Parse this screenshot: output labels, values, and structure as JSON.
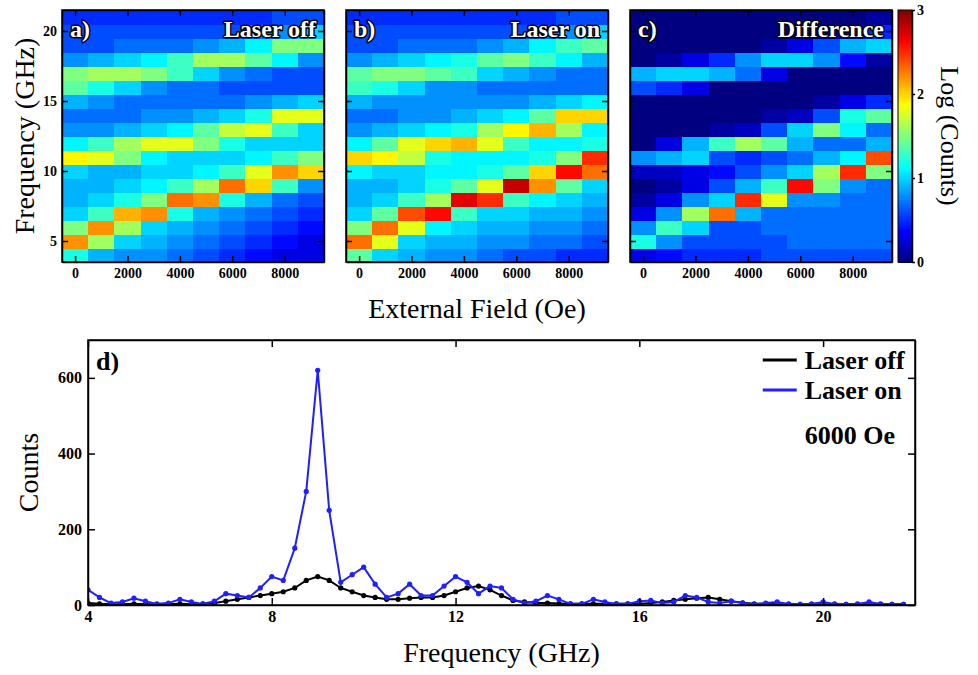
{
  "chart_data": [
    {
      "type": "heatmap",
      "panel": "a)",
      "title": "Laser off",
      "ylabel": "Frequency (GHz)",
      "x": [
        0,
        1000,
        2000,
        3000,
        4000,
        5000,
        6000,
        7000,
        8000,
        9000
      ],
      "y": [
        4,
        5,
        6,
        7,
        8,
        9,
        10,
        11,
        12,
        13,
        14,
        15,
        16,
        17,
        18,
        19,
        20,
        21
      ],
      "xlim": [
        -500,
        9500
      ],
      "ylim": [
        3.5,
        21.5
      ],
      "xticks": [
        0,
        2000,
        4000,
        6000,
        8000
      ],
      "yticks": [
        5,
        10,
        15,
        20
      ],
      "grid": false,
      "values": [
        [
          1.2,
          0.9,
          0.8,
          0.8,
          0.7,
          0.6,
          0.5,
          0.4,
          0.3,
          0.3
        ],
        [
          2.2,
          1.6,
          1.0,
          0.9,
          0.8,
          0.7,
          0.6,
          0.5,
          0.4,
          0.3
        ],
        [
          1.5,
          2.2,
          1.6,
          1.0,
          0.9,
          0.8,
          0.7,
          0.6,
          0.5,
          0.4
        ],
        [
          1.0,
          1.3,
          2.1,
          2.2,
          1.2,
          0.9,
          0.8,
          0.7,
          0.6,
          0.5
        ],
        [
          0.9,
          1.0,
          1.2,
          1.5,
          2.3,
          2.2,
          1.2,
          0.9,
          0.7,
          0.6
        ],
        [
          0.9,
          0.9,
          1.0,
          1.1,
          1.3,
          1.6,
          2.3,
          2.0,
          1.3,
          0.8
        ],
        [
          1.0,
          0.9,
          0.9,
          1.0,
          1.0,
          1.1,
          1.3,
          1.8,
          2.2,
          2.0
        ],
        [
          1.9,
          1.8,
          1.5,
          1.1,
          1.0,
          1.0,
          1.0,
          1.1,
          1.3,
          1.5
        ],
        [
          1.1,
          1.3,
          1.6,
          1.8,
          1.8,
          1.5,
          1.2,
          1.0,
          1.0,
          1.0
        ],
        [
          0.8,
          0.8,
          0.9,
          1.0,
          1.1,
          1.4,
          1.7,
          1.8,
          1.3,
          1.0
        ],
        [
          0.7,
          0.7,
          0.7,
          0.8,
          0.8,
          0.9,
          1.0,
          1.2,
          1.8,
          1.8
        ],
        [
          0.9,
          0.8,
          0.7,
          0.7,
          0.7,
          0.7,
          0.7,
          0.8,
          0.9,
          1.0
        ],
        [
          1.4,
          1.2,
          1.0,
          0.8,
          0.7,
          0.7,
          0.6,
          0.6,
          0.6,
          0.6
        ],
        [
          1.5,
          1.6,
          1.6,
          1.5,
          1.3,
          1.0,
          0.8,
          0.7,
          0.6,
          0.6
        ],
        [
          0.8,
          0.9,
          1.0,
          1.1,
          1.3,
          1.6,
          1.6,
          1.4,
          1.1,
          0.8
        ],
        [
          0.6,
          0.6,
          0.7,
          0.7,
          0.7,
          0.8,
          0.9,
          1.1,
          1.5,
          1.5
        ],
        [
          0.6,
          0.6,
          0.6,
          0.6,
          0.6,
          0.6,
          0.6,
          0.7,
          0.8,
          1.0
        ],
        [
          0.5,
          0.5,
          0.5,
          0.5,
          0.5,
          0.5,
          0.5,
          0.5,
          0.6,
          0.6
        ]
      ]
    },
    {
      "type": "heatmap",
      "panel": "b)",
      "title": "Laser on",
      "xlabel": "External Field (Oe)",
      "x": [
        0,
        1000,
        2000,
        3000,
        4000,
        5000,
        6000,
        7000,
        8000,
        9000
      ],
      "y": [
        4,
        5,
        6,
        7,
        8,
        9,
        10,
        11,
        12,
        13,
        14,
        15,
        16,
        17,
        18,
        19,
        20,
        21
      ],
      "xlim": [
        -500,
        9500
      ],
      "ylim": [
        3.5,
        21.5
      ],
      "xticks": [
        0,
        2000,
        4000,
        6000,
        8000
      ],
      "yticks": [
        5,
        10,
        15,
        20
      ],
      "grid": false,
      "tick_labels": "x",
      "values": [
        [
          1.4,
          1.0,
          0.9,
          0.8,
          0.8,
          0.7,
          0.6,
          0.6,
          0.5,
          0.5
        ],
        [
          2.3,
          1.8,
          1.0,
          0.9,
          0.9,
          0.8,
          0.8,
          0.7,
          0.7,
          0.6
        ],
        [
          1.5,
          2.3,
          1.8,
          1.1,
          1.0,
          0.9,
          0.9,
          0.8,
          0.8,
          0.7
        ],
        [
          1.0,
          1.4,
          2.4,
          2.6,
          1.3,
          1.0,
          1.0,
          0.9,
          0.9,
          0.8
        ],
        [
          0.9,
          1.0,
          1.3,
          1.6,
          2.7,
          2.5,
          1.3,
          1.1,
          1.0,
          0.9
        ],
        [
          0.9,
          0.9,
          1.0,
          1.2,
          1.4,
          1.8,
          2.8,
          2.2,
          1.4,
          1.0
        ],
        [
          1.1,
          1.0,
          1.0,
          1.1,
          1.1,
          1.2,
          1.4,
          2.0,
          2.6,
          2.3
        ],
        [
          2.0,
          1.9,
          1.7,
          1.2,
          1.1,
          1.1,
          1.1,
          1.2,
          1.5,
          2.5
        ],
        [
          1.1,
          1.4,
          1.8,
          2.0,
          2.1,
          1.8,
          1.3,
          1.1,
          1.1,
          1.2
        ],
        [
          0.8,
          0.9,
          1.0,
          1.1,
          1.2,
          1.6,
          1.9,
          2.1,
          1.6,
          1.1
        ],
        [
          0.7,
          0.7,
          0.8,
          0.8,
          0.9,
          1.0,
          1.1,
          1.4,
          2.0,
          2.0
        ],
        [
          0.9,
          0.8,
          0.8,
          0.8,
          0.8,
          0.8,
          0.8,
          0.9,
          1.0,
          1.1
        ],
        [
          1.3,
          1.2,
          1.0,
          0.8,
          0.8,
          0.7,
          0.7,
          0.7,
          0.7,
          0.7
        ],
        [
          1.4,
          1.5,
          1.5,
          1.4,
          1.3,
          1.0,
          0.9,
          0.8,
          0.7,
          0.7
        ],
        [
          0.8,
          0.9,
          1.0,
          1.1,
          1.2,
          1.4,
          1.5,
          1.3,
          1.1,
          0.9
        ],
        [
          0.6,
          0.6,
          0.7,
          0.7,
          0.7,
          0.8,
          0.9,
          1.1,
          1.3,
          1.4
        ],
        [
          0.6,
          0.6,
          0.6,
          0.6,
          0.6,
          0.6,
          0.6,
          0.7,
          0.8,
          1.0
        ],
        [
          0.5,
          0.5,
          0.5,
          0.5,
          0.5,
          0.5,
          0.5,
          0.5,
          0.6,
          0.6
        ]
      ]
    },
    {
      "type": "heatmap",
      "panel": "c)",
      "title": "Difference",
      "x": [
        0,
        1000,
        2000,
        3000,
        4000,
        5000,
        6000,
        7000,
        8000,
        9000
      ],
      "y": [
        4,
        5,
        6,
        7,
        8,
        9,
        10,
        11,
        12,
        13,
        14,
        15,
        16,
        17,
        18,
        19,
        20,
        21
      ],
      "xlim": [
        -500,
        9500
      ],
      "ylim": [
        3.5,
        21.5
      ],
      "xticks": [
        0,
        2000,
        4000,
        6000,
        8000
      ],
      "yticks": [
        5,
        10,
        15,
        20
      ],
      "grid": false,
      "tick_labels": "x",
      "colorbar": {
        "label": "Log (Counts)",
        "range": [
          0,
          3
        ],
        "ticks": [
          0,
          1,
          2,
          3
        ]
      },
      "values": [
        [
          0.3,
          0.4,
          0.5,
          0.5,
          0.5,
          0.6,
          0.6,
          0.6,
          0.6,
          0.6
        ],
        [
          1.2,
          0.8,
          0.6,
          0.6,
          0.6,
          0.6,
          0.7,
          0.7,
          0.7,
          0.7
        ],
        [
          0.8,
          1.3,
          1.0,
          0.6,
          0.6,
          0.7,
          0.7,
          0.7,
          0.7,
          0.7
        ],
        [
          0.3,
          0.8,
          1.6,
          2.3,
          0.9,
          0.7,
          0.7,
          0.7,
          0.7,
          0.7
        ],
        [
          0.1,
          0.3,
          0.8,
          1.0,
          2.5,
          1.8,
          0.8,
          0.8,
          0.7,
          0.7
        ],
        [
          0.0,
          0.1,
          0.3,
          0.6,
          0.9,
          1.3,
          2.6,
          1.5,
          0.8,
          0.7
        ],
        [
          0.2,
          0.2,
          0.3,
          0.4,
          0.6,
          0.8,
          1.0,
          1.6,
          2.5,
          1.5
        ],
        [
          0.8,
          0.9,
          1.0,
          0.6,
          0.5,
          0.6,
          0.7,
          0.9,
          1.1,
          2.4
        ],
        [
          0.0,
          0.3,
          0.9,
          1.3,
          1.6,
          1.4,
          0.9,
          0.7,
          0.7,
          0.9
        ],
        [
          0.0,
          0.0,
          0.0,
          0.1,
          0.2,
          0.6,
          1.0,
          1.5,
          1.1,
          0.7
        ],
        [
          0.0,
          0.0,
          0.0,
          0.0,
          0.0,
          0.1,
          0.2,
          0.6,
          1.2,
          1.4
        ],
        [
          0.0,
          0.0,
          0.0,
          0.0,
          0.0,
          0.0,
          0.0,
          0.1,
          0.3,
          0.5
        ],
        [
          0.6,
          0.5,
          0.3,
          0.0,
          0.0,
          0.0,
          0.0,
          0.0,
          0.0,
          0.0
        ],
        [
          0.9,
          1.0,
          1.0,
          0.9,
          0.7,
          0.3,
          0.0,
          0.0,
          0.0,
          0.0
        ],
        [
          0.0,
          0.1,
          0.3,
          0.5,
          0.8,
          1.0,
          1.0,
          0.8,
          0.4,
          0.1
        ],
        [
          0.0,
          0.0,
          0.0,
          0.0,
          0.0,
          0.1,
          0.3,
          0.6,
          0.9,
          1.0
        ],
        [
          0.0,
          0.0,
          0.0,
          0.0,
          0.0,
          0.0,
          0.0,
          0.1,
          0.2,
          0.5
        ],
        [
          0.0,
          0.0,
          0.0,
          0.0,
          0.0,
          0.0,
          0.0,
          0.0,
          0.0,
          0.1
        ]
      ]
    },
    {
      "type": "line",
      "panel": "d)",
      "xlabel": "Frequency (GHz)",
      "ylabel": "Counts",
      "xlim": [
        4,
        22
      ],
      "ylim": [
        0,
        700
      ],
      "xticks": [
        4,
        8,
        12,
        16,
        20
      ],
      "yticks": [
        0,
        200,
        400,
        600
      ],
      "grid": false,
      "legend": "upper right",
      "annotations": [
        "6000 Oe"
      ],
      "x": [
        4,
        4.25,
        4.5,
        4.75,
        5,
        5.25,
        5.5,
        5.75,
        6,
        6.25,
        6.5,
        6.75,
        7,
        7.25,
        7.5,
        7.75,
        8,
        8.25,
        8.5,
        8.75,
        9,
        9.25,
        9.5,
        9.75,
        10,
        10.25,
        10.5,
        10.75,
        11,
        11.25,
        11.5,
        11.75,
        12,
        12.25,
        12.5,
        12.75,
        13,
        13.25,
        13.5,
        13.75,
        14,
        14.25,
        14.5,
        14.75,
        15,
        15.25,
        15.5,
        15.75,
        16,
        16.25,
        16.5,
        16.75,
        17,
        17.25,
        17.5,
        17.75,
        18,
        18.25,
        18.5,
        18.75,
        19,
        19.25,
        19.5,
        19.75,
        20,
        20.25,
        20.5,
        20.75,
        21,
        21.25,
        21.5,
        21.75
      ],
      "series": [
        {
          "name": "Laser off",
          "color": "#000000",
          "marker": "circle",
          "line_style": "solid",
          "values": [
            5,
            3,
            2,
            2,
            3,
            2,
            2,
            2,
            3,
            2,
            3,
            5,
            10,
            15,
            20,
            25,
            30,
            35,
            45,
            65,
            75,
            65,
            45,
            35,
            25,
            20,
            15,
            15,
            18,
            20,
            20,
            25,
            35,
            45,
            50,
            40,
            25,
            12,
            8,
            5,
            5,
            4,
            3,
            3,
            3,
            3,
            3,
            3,
            3,
            5,
            8,
            12,
            15,
            18,
            20,
            15,
            10,
            6,
            3,
            3,
            2,
            2,
            2,
            2,
            2,
            2,
            2,
            2,
            2,
            2,
            2,
            2
          ]
        },
        {
          "name": "Laser on",
          "color": "#1f1fff",
          "marker": "circle",
          "line_style": "solid",
          "values": [
            40,
            20,
            5,
            8,
            18,
            10,
            3,
            5,
            15,
            8,
            3,
            10,
            30,
            25,
            20,
            45,
            75,
            65,
            150,
            300,
            620,
            250,
            60,
            80,
            100,
            55,
            20,
            30,
            55,
            25,
            25,
            50,
            75,
            60,
            30,
            50,
            45,
            15,
            5,
            10,
            25,
            15,
            3,
            3,
            15,
            8,
            3,
            3,
            10,
            12,
            5,
            8,
            25,
            20,
            8,
            5,
            10,
            5,
            2,
            5,
            8,
            3,
            2,
            3,
            8,
            3,
            2,
            3,
            8,
            3,
            2,
            2
          ]
        }
      ]
    }
  ]
}
